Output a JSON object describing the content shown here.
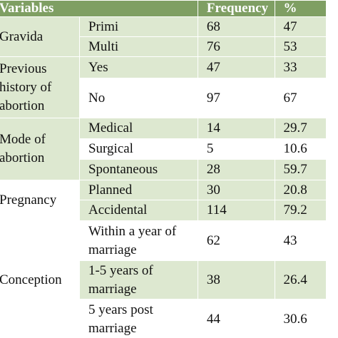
{
  "table": {
    "header": [
      "Variables",
      "Frequency",
      "%"
    ],
    "groups": [
      {
        "label": "Gravida",
        "rows": [
          [
            "Primi",
            "68",
            "47"
          ],
          [
            "Multi",
            "76",
            "53"
          ]
        ]
      },
      {
        "label": "Previous history of abortion",
        "rows": [
          [
            "Yes",
            "47",
            "33"
          ],
          [
            "No",
            "97",
            "67"
          ]
        ]
      },
      {
        "label": "Mode of abortion",
        "rows": [
          [
            "Medical",
            "14",
            "29.7"
          ],
          [
            "Surgical",
            "5",
            "10.6"
          ],
          [
            "Spontaneous",
            "28",
            "59.7"
          ]
        ]
      },
      {
        "label": "Pregnancy",
        "rows": [
          [
            "Planned",
            "30",
            "20.8"
          ],
          [
            "Accidental",
            "114",
            "79.2"
          ]
        ]
      },
      {
        "label": "Conception",
        "rows": [
          [
            "Within a year of marriage",
            "62",
            "43"
          ],
          [
            "1-5 years of marriage",
            "38",
            "26.4"
          ],
          [
            "5 years post marriage",
            "44",
            "30.6"
          ]
        ]
      }
    ]
  }
}
